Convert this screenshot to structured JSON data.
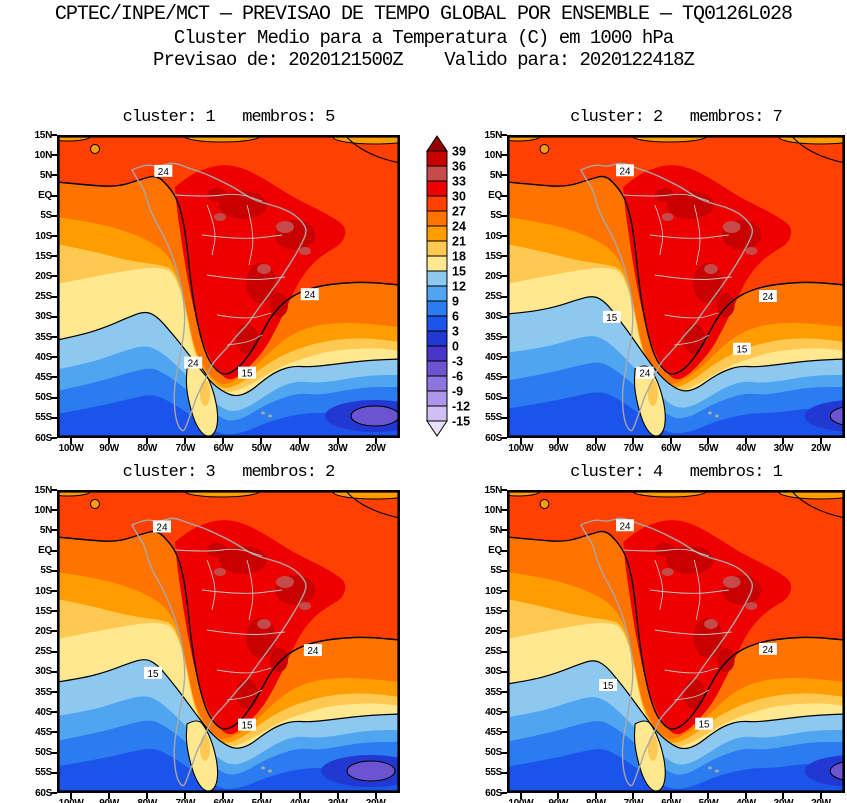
{
  "header": {
    "line1": "CPTEC/INPE/MCT — PREVISAO DE TEMPO GLOBAL POR ENSEMBLE — TQ0126L028",
    "line2": "Cluster Medio para a Temperatura (C) em 1000 hPa",
    "line3": "Previsao de: 2020121500Z    Valido para: 2020122418Z"
  },
  "chart_data": {
    "type": "heatmap",
    "title": "Cluster Medio para a Temperatura (C) em 1000 hPa",
    "source": "CPTEC/INPE/MCT",
    "model": "TQ0126L028",
    "forecast_init": "2020121500Z",
    "forecast_valid": "2020122418Z",
    "variable": "Temperatura",
    "units": "C",
    "level": "1000 hPa",
    "legend_position": "middle-top",
    "grid": false,
    "lat_ticks": [
      "15N",
      "10N",
      "5N",
      "EQ",
      "5S",
      "10S",
      "15S",
      "20S",
      "25S",
      "30S",
      "35S",
      "40S",
      "45S",
      "50S",
      "55S",
      "60S"
    ],
    "lon_ticks": [
      "100W",
      "90W",
      "80W",
      "70W",
      "60W",
      "50W",
      "40W",
      "30W",
      "20W"
    ],
    "colorbar": {
      "levels": [
        39,
        36,
        33,
        30,
        27,
        24,
        21,
        18,
        15,
        12,
        9,
        6,
        3,
        0,
        -3,
        -6,
        -9,
        -12,
        -15
      ],
      "colors": [
        "#960000",
        "#C80000",
        "#C64A4A",
        "#EE0000",
        "#FF4000",
        "#FF7300",
        "#FF9C00",
        "#FFC850",
        "#FFE890",
        "#8CC8F0",
        "#50A5F0",
        "#2A7CF0",
        "#1B53EB",
        "#2139D2",
        "#4A35C8",
        "#6C53CF",
        "#8D75DD",
        "#AE97EA",
        "#CFBFF4",
        "#E9E1FB"
      ]
    },
    "panels": [
      {
        "label": "cluster: 1   membros: 5",
        "cluster": 1,
        "membros": 5,
        "contour_labels": [
          {
            "value": "24",
            "x": 0.31,
            "y": 0.12
          },
          {
            "value": "24",
            "x": 0.737,
            "y": 0.527
          },
          {
            "value": "24",
            "x": 0.397,
            "y": 0.753
          },
          {
            "value": "15",
            "x": 0.554,
            "y": 0.786
          }
        ]
      },
      {
        "label": "cluster: 2   membros: 7",
        "cluster": 2,
        "membros": 7,
        "contour_labels": [
          {
            "value": "24",
            "x": 0.349,
            "y": 0.118
          },
          {
            "value": "24",
            "x": 0.772,
            "y": 0.533
          },
          {
            "value": "15",
            "x": 0.31,
            "y": 0.602
          },
          {
            "value": "15",
            "x": 0.695,
            "y": 0.707
          },
          {
            "value": "24",
            "x": 0.408,
            "y": 0.786
          }
        ]
      },
      {
        "label": "cluster: 3   membros: 2",
        "cluster": 3,
        "membros": 2,
        "contour_labels": [
          {
            "value": "24",
            "x": 0.306,
            "y": 0.122
          },
          {
            "value": "24",
            "x": 0.746,
            "y": 0.53
          },
          {
            "value": "15",
            "x": 0.28,
            "y": 0.605
          },
          {
            "value": "15",
            "x": 0.554,
            "y": 0.776
          }
        ]
      },
      {
        "label": "cluster: 4   membros: 1",
        "cluster": 4,
        "membros": 1,
        "contour_labels": [
          {
            "value": "24",
            "x": 0.349,
            "y": 0.118
          },
          {
            "value": "24",
            "x": 0.772,
            "y": 0.526
          },
          {
            "value": "15",
            "x": 0.299,
            "y": 0.645
          },
          {
            "value": "15",
            "x": 0.583,
            "y": 0.773
          }
        ]
      }
    ]
  }
}
